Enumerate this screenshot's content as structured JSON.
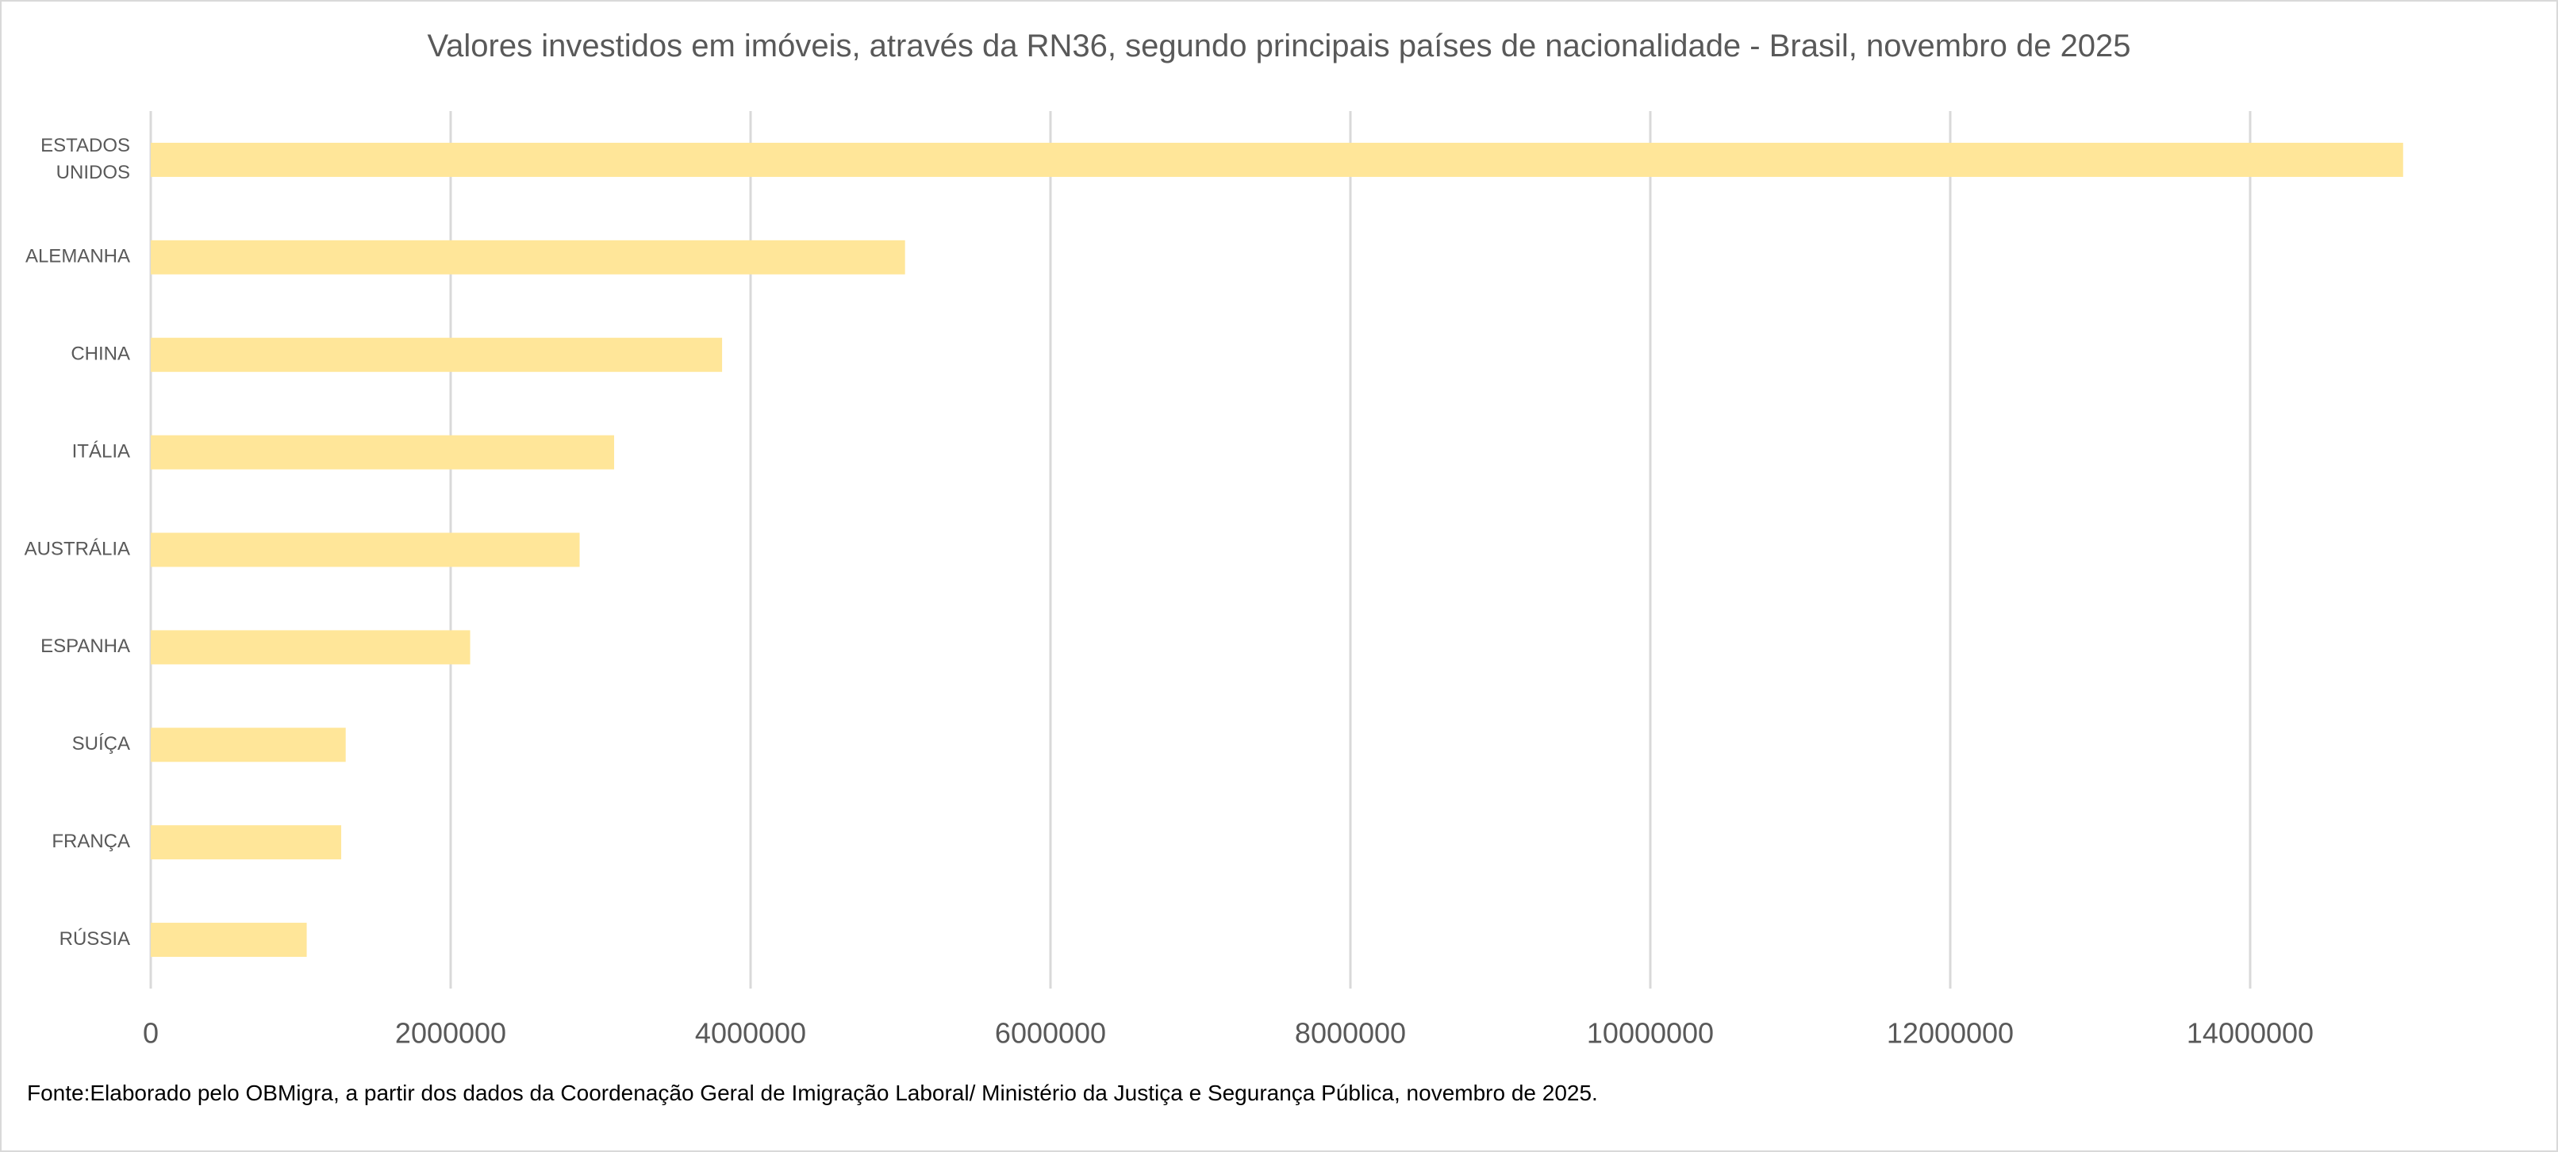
{
  "chart_data": {
    "type": "bar",
    "orientation": "horizontal",
    "title": "Valores investidos em imóveis, através da RN36, segundo principais países de nacionalidade - Brasil, novembro de 2025",
    "categories": [
      [
        "ESTADOS",
        "UNIDOS"
      ],
      [
        "ALEMANHA"
      ],
      [
        "CHINA"
      ],
      [
        "ITÁLIA"
      ],
      [
        "AUSTRÁLIA"
      ],
      [
        "ESPANHA"
      ],
      [
        "SUÍÇA"
      ],
      [
        "FRANÇA"
      ],
      [
        "RÚSSIA"
      ]
    ],
    "values": [
      15020000,
      5030000,
      3810000,
      3090000,
      2860000,
      2130000,
      1300000,
      1270000,
      1040000
    ],
    "xlim": [
      0,
      15000000
    ],
    "xticks": [
      "0",
      "2000000",
      "4000000",
      "6000000",
      "8000000",
      "10000000",
      "12000000",
      "14000000"
    ],
    "xtick_values": [
      0,
      2000000,
      4000000,
      6000000,
      8000000,
      10000000,
      12000000,
      14000000
    ],
    "xlabel": "",
    "ylabel": "",
    "grid": true,
    "legend": "none",
    "bar_color": "#FFE699",
    "grid_color": "#D9D9D9"
  },
  "footer": {
    "source": "Fonte:Elaborado pelo OBMigra, a partir dos dados da Coordenação Geral de Imigração Laboral/ Ministério da Justiça e Segurança Pública, novembro de 2025."
  }
}
